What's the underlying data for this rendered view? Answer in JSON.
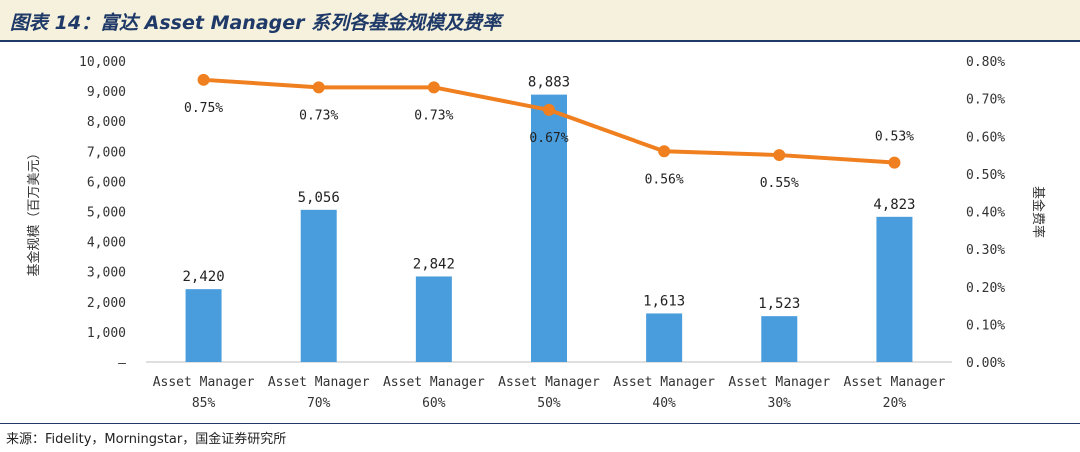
{
  "figure": {
    "title": "图表 14：富达 Asset Manager 系列各基金规模及费率",
    "source": "来源：Fidelity，Morningstar，国金证券研究所"
  },
  "colors": {
    "bar": "#4a9ddc",
    "line": "#f07f1f",
    "header_bg": "#f6f1dc",
    "header_rule": "#1f3a68"
  },
  "chart_data": {
    "type": "bar",
    "categories": [
      [
        "Asset Manager",
        "85%"
      ],
      [
        "Asset Manager",
        "70%"
      ],
      [
        "Asset Manager",
        "60%"
      ],
      [
        "Asset Manager",
        "50%"
      ],
      [
        "Asset Manager",
        "40%"
      ],
      [
        "Asset Manager",
        "30%"
      ],
      [
        "Asset Manager",
        "20%"
      ]
    ],
    "series": [
      {
        "type": "bar",
        "axis": "left",
        "values": [
          2420,
          5056,
          2842,
          8883,
          1613,
          1523,
          4823
        ],
        "labels": [
          "2,420",
          "5,056",
          "2,842",
          "8,883",
          "1,613",
          "1,523",
          "4,823"
        ]
      },
      {
        "type": "line",
        "axis": "right",
        "values": [
          0.75,
          0.73,
          0.73,
          0.67,
          0.56,
          0.55,
          0.53
        ],
        "labels": [
          "0.75%",
          "0.73%",
          "0.73%",
          "0.67%",
          "0.56%",
          "0.55%",
          "0.53%"
        ]
      }
    ],
    "ylabel": "基金规模（百万美元）",
    "y2label": "基金费率",
    "ylim": [
      0,
      10000
    ],
    "y2lim": [
      0,
      0.8
    ],
    "yticks": [
      "–",
      "1,000",
      "2,000",
      "3,000",
      "4,000",
      "5,000",
      "6,000",
      "7,000",
      "8,000",
      "9,000",
      "10,000"
    ],
    "y2ticks": [
      "0.00%",
      "0.10%",
      "0.20%",
      "0.30%",
      "0.40%",
      "0.50%",
      "0.60%",
      "0.70%",
      "0.80%"
    ],
    "grid": false,
    "legend": "none"
  }
}
